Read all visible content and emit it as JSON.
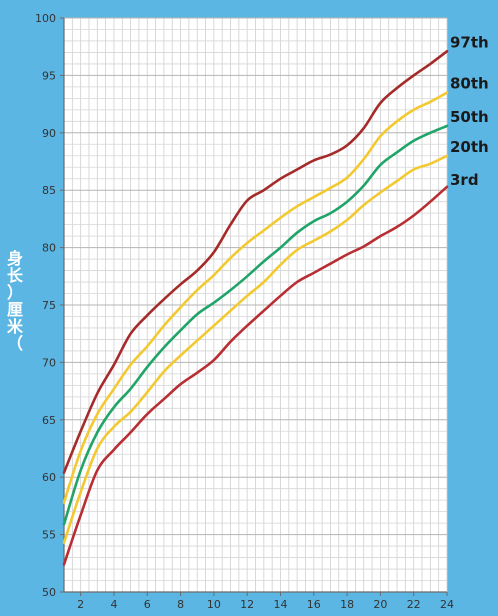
{
  "chart_data": {
    "type": "line",
    "title": "",
    "xlabel": "",
    "ylabel": "身长（厘米）",
    "ylabel_chars": [
      "身",
      "长",
      "）",
      "厘",
      "米",
      "（"
    ],
    "xlim": [
      1,
      24
    ],
    "ylim": [
      50,
      100
    ],
    "x_ticks": [
      "2",
      "4",
      "6",
      "8",
      "10",
      "12",
      "14",
      "16",
      "18",
      "20",
      "22",
      "24"
    ],
    "y_ticks": [
      "50",
      "55",
      "60",
      "65",
      "70",
      "75",
      "80",
      "85",
      "90",
      "95",
      "100"
    ],
    "grid": true,
    "x": [
      1,
      2,
      3,
      4,
      5,
      6,
      7,
      8,
      9,
      10,
      11,
      12,
      13,
      14,
      15,
      16,
      17,
      18,
      19,
      20,
      21,
      22,
      23,
      24
    ],
    "series": [
      {
        "name": "97th",
        "color": "#a52a2a",
        "values": [
          60.4,
          64.0,
          67.3,
          69.8,
          72.5,
          74.1,
          75.5,
          76.8,
          78.0,
          79.6,
          82.0,
          84.1,
          85.0,
          86.0,
          86.8,
          87.6,
          88.1,
          88.9,
          90.4,
          92.6,
          93.9,
          95.0,
          96.0,
          97.1
        ]
      },
      {
        "name": "80th",
        "color": "#f2c930",
        "values": [
          57.8,
          62.3,
          65.5,
          67.7,
          69.8,
          71.4,
          73.2,
          74.8,
          76.3,
          77.6,
          79.1,
          80.4,
          81.5,
          82.6,
          83.6,
          84.4,
          85.2,
          86.1,
          87.7,
          89.7,
          91.0,
          92.0,
          92.7,
          93.5
        ]
      },
      {
        "name": "50th",
        "color": "#20a468",
        "values": [
          55.9,
          60.6,
          63.9,
          66.1,
          67.7,
          69.6,
          71.3,
          72.8,
          74.2,
          75.2,
          76.3,
          77.5,
          78.8,
          80.0,
          81.3,
          82.3,
          83.0,
          84.0,
          85.4,
          87.2,
          88.3,
          89.3,
          90.0,
          90.6
        ]
      },
      {
        "name": "20th",
        "color": "#f2c930",
        "values": [
          54.3,
          58.7,
          62.5,
          64.4,
          65.7,
          67.4,
          69.2,
          70.6,
          71.9,
          73.2,
          74.5,
          75.8,
          77.0,
          78.5,
          79.8,
          80.6,
          81.4,
          82.4,
          83.7,
          84.8,
          85.8,
          86.8,
          87.3,
          88.0
        ]
      },
      {
        "name": "3rd",
        "color": "#b82e33",
        "values": [
          52.4,
          56.7,
          60.6,
          62.4,
          63.9,
          65.5,
          66.8,
          68.1,
          69.1,
          70.2,
          71.8,
          73.2,
          74.5,
          75.8,
          77.0,
          77.8,
          78.6,
          79.4,
          80.1,
          81.0,
          81.8,
          82.8,
          84.0,
          85.3
        ]
      }
    ]
  }
}
